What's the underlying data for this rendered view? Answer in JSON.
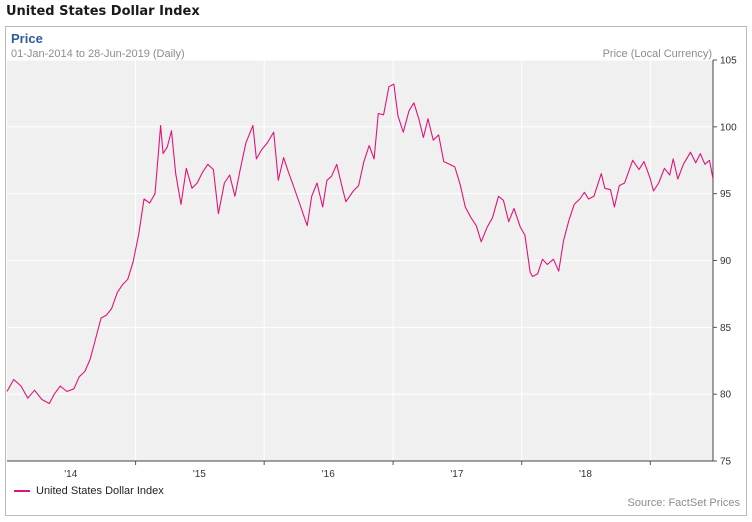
{
  "page": {
    "title": "United States Dollar Index"
  },
  "chart_data": {
    "type": "line",
    "title": "Price",
    "subtitle": "01-Jan-2014 to 28-Jun-2019 (Daily)",
    "ylabel": "Price (Local Currency)",
    "xlabel": "",
    "source": "Source: FactSet Prices",
    "ylim": [
      75,
      105
    ],
    "xlim": [
      "2014-01-01",
      "2019-06-28"
    ],
    "grid": true,
    "legend_position": "bottom-left",
    "y_ticks": [
      75,
      80,
      85,
      90,
      95,
      100,
      105
    ],
    "x_ticks": [
      {
        "label": "'14",
        "date": "2014-07-01"
      },
      {
        "label": "'15",
        "date": "2015-07-01"
      },
      {
        "label": "'16",
        "date": "2016-07-01"
      },
      {
        "label": "'17",
        "date": "2017-07-01"
      },
      {
        "label": "'18",
        "date": "2018-07-01"
      }
    ],
    "x_gridlines": [
      "2015-01-01",
      "2016-01-01",
      "2017-01-01",
      "2018-01-01",
      "2019-01-01"
    ],
    "series": [
      {
        "name": "United States Dollar Index",
        "color": "#e0157a",
        "points": [
          [
            "2014-01-01",
            80.2
          ],
          [
            "2014-01-20",
            81.1
          ],
          [
            "2014-02-10",
            80.6
          ],
          [
            "2014-03-01",
            79.7
          ],
          [
            "2014-03-20",
            80.3
          ],
          [
            "2014-04-10",
            79.6
          ],
          [
            "2014-05-01",
            79.3
          ],
          [
            "2014-05-15",
            80.0
          ],
          [
            "2014-06-01",
            80.6
          ],
          [
            "2014-06-20",
            80.2
          ],
          [
            "2014-07-10",
            80.4
          ],
          [
            "2014-07-25",
            81.3
          ],
          [
            "2014-08-10",
            81.7
          ],
          [
            "2014-08-25",
            82.6
          ],
          [
            "2014-09-10",
            84.2
          ],
          [
            "2014-09-25",
            85.7
          ],
          [
            "2014-10-10",
            85.9
          ],
          [
            "2014-10-25",
            86.4
          ],
          [
            "2014-11-10",
            87.6
          ],
          [
            "2014-11-25",
            88.2
          ],
          [
            "2014-12-10",
            88.6
          ],
          [
            "2014-12-25",
            89.9
          ],
          [
            "2015-01-10",
            92.0
          ],
          [
            "2015-01-25",
            94.6
          ],
          [
            "2015-02-10",
            94.3
          ],
          [
            "2015-02-25",
            95.0
          ],
          [
            "2015-03-05",
            97.5
          ],
          [
            "2015-03-13",
            100.1
          ],
          [
            "2015-03-20",
            98.0
          ],
          [
            "2015-04-01",
            98.5
          ],
          [
            "2015-04-13",
            99.7
          ],
          [
            "2015-04-25",
            96.5
          ],
          [
            "2015-05-10",
            94.2
          ],
          [
            "2015-05-25",
            96.9
          ],
          [
            "2015-06-10",
            95.4
          ],
          [
            "2015-06-25",
            95.8
          ],
          [
            "2015-07-10",
            96.6
          ],
          [
            "2015-07-25",
            97.2
          ],
          [
            "2015-08-10",
            96.8
          ],
          [
            "2015-08-24",
            93.5
          ],
          [
            "2015-09-10",
            95.8
          ],
          [
            "2015-09-25",
            96.4
          ],
          [
            "2015-10-10",
            94.8
          ],
          [
            "2015-10-25",
            96.8
          ],
          [
            "2015-11-10",
            98.8
          ],
          [
            "2015-11-30",
            100.1
          ],
          [
            "2015-12-10",
            97.6
          ],
          [
            "2015-12-25",
            98.3
          ],
          [
            "2016-01-10",
            98.8
          ],
          [
            "2016-01-28",
            99.6
          ],
          [
            "2016-02-10",
            96.0
          ],
          [
            "2016-02-25",
            97.7
          ],
          [
            "2016-03-10",
            96.6
          ],
          [
            "2016-03-25",
            95.5
          ],
          [
            "2016-04-10",
            94.3
          ],
          [
            "2016-05-02",
            92.6
          ],
          [
            "2016-05-15",
            94.8
          ],
          [
            "2016-05-30",
            95.8
          ],
          [
            "2016-06-15",
            94.0
          ],
          [
            "2016-06-27",
            96.0
          ],
          [
            "2016-07-10",
            96.3
          ],
          [
            "2016-07-25",
            97.2
          ],
          [
            "2016-08-10",
            95.4
          ],
          [
            "2016-08-20",
            94.4
          ],
          [
            "2016-09-10",
            95.2
          ],
          [
            "2016-09-25",
            95.6
          ],
          [
            "2016-10-10",
            97.4
          ],
          [
            "2016-10-25",
            98.6
          ],
          [
            "2016-11-08",
            97.6
          ],
          [
            "2016-11-20",
            101.0
          ],
          [
            "2016-12-05",
            100.9
          ],
          [
            "2016-12-20",
            103.0
          ],
          [
            "2017-01-03",
            103.2
          ],
          [
            "2017-01-15",
            100.8
          ],
          [
            "2017-01-30",
            99.6
          ],
          [
            "2017-02-15",
            101.2
          ],
          [
            "2017-03-01",
            101.8
          ],
          [
            "2017-03-15",
            100.6
          ],
          [
            "2017-03-28",
            99.2
          ],
          [
            "2017-04-10",
            100.6
          ],
          [
            "2017-04-25",
            99.0
          ],
          [
            "2017-05-10",
            99.4
          ],
          [
            "2017-05-25",
            97.4
          ],
          [
            "2017-06-10",
            97.2
          ],
          [
            "2017-06-25",
            97.0
          ],
          [
            "2017-07-10",
            95.7
          ],
          [
            "2017-07-25",
            94.0
          ],
          [
            "2017-08-10",
            93.2
          ],
          [
            "2017-08-25",
            92.6
          ],
          [
            "2017-09-08",
            91.4
          ],
          [
            "2017-09-25",
            92.5
          ],
          [
            "2017-10-10",
            93.2
          ],
          [
            "2017-10-27",
            94.8
          ],
          [
            "2017-11-10",
            94.5
          ],
          [
            "2017-11-25",
            92.9
          ],
          [
            "2017-12-10",
            93.9
          ],
          [
            "2017-12-28",
            92.5
          ],
          [
            "2018-01-10",
            91.9
          ],
          [
            "2018-01-25",
            89.1
          ],
          [
            "2018-02-01",
            88.8
          ],
          [
            "2018-02-15",
            89.0
          ],
          [
            "2018-03-01",
            90.1
          ],
          [
            "2018-03-15",
            89.7
          ],
          [
            "2018-04-01",
            90.1
          ],
          [
            "2018-04-16",
            89.2
          ],
          [
            "2018-04-30",
            91.5
          ],
          [
            "2018-05-15",
            93.0
          ],
          [
            "2018-05-30",
            94.2
          ],
          [
            "2018-06-15",
            94.6
          ],
          [
            "2018-06-28",
            95.1
          ],
          [
            "2018-07-10",
            94.6
          ],
          [
            "2018-07-25",
            94.8
          ],
          [
            "2018-08-15",
            96.5
          ],
          [
            "2018-08-25",
            95.4
          ],
          [
            "2018-09-10",
            95.3
          ],
          [
            "2018-09-21",
            94.0
          ],
          [
            "2018-10-05",
            95.6
          ],
          [
            "2018-10-20",
            95.8
          ],
          [
            "2018-11-12",
            97.5
          ],
          [
            "2018-11-30",
            96.8
          ],
          [
            "2018-12-14",
            97.4
          ],
          [
            "2018-12-31",
            96.2
          ],
          [
            "2019-01-10",
            95.2
          ],
          [
            "2019-01-25",
            95.8
          ],
          [
            "2019-02-10",
            96.9
          ],
          [
            "2019-02-25",
            96.4
          ],
          [
            "2019-03-07",
            97.6
          ],
          [
            "2019-03-20",
            96.1
          ],
          [
            "2019-04-05",
            97.2
          ],
          [
            "2019-04-25",
            98.1
          ],
          [
            "2019-05-10",
            97.3
          ],
          [
            "2019-05-23",
            98.0
          ],
          [
            "2019-06-05",
            97.2
          ],
          [
            "2019-06-18",
            97.5
          ],
          [
            "2019-06-28",
            96.1
          ]
        ]
      }
    ]
  }
}
